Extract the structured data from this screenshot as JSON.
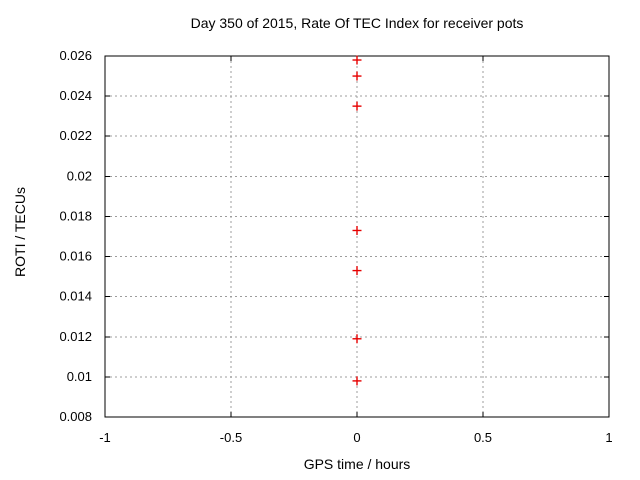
{
  "chart_data": {
    "type": "scatter",
    "title": "Day 350 of 2015, Rate Of TEC Index for receiver pots",
    "xlabel": "GPS time / hours",
    "ylabel": "ROTI / TECUs",
    "xlim": [
      -1,
      1
    ],
    "ylim": [
      0.008,
      0.026
    ],
    "xticks": [
      {
        "value": -1,
        "label": "-1"
      },
      {
        "value": -0.5,
        "label": "-0.5"
      },
      {
        "value": 0,
        "label": "0"
      },
      {
        "value": 0.5,
        "label": "0.5"
      },
      {
        "value": 1,
        "label": "1"
      }
    ],
    "yticks": [
      {
        "value": 0.008,
        "label": "0.008"
      },
      {
        "value": 0.01,
        "label": "0.01"
      },
      {
        "value": 0.012,
        "label": "0.012"
      },
      {
        "value": 0.014,
        "label": "0.014"
      },
      {
        "value": 0.016,
        "label": "0.016"
      },
      {
        "value": 0.018,
        "label": "0.018"
      },
      {
        "value": 0.02,
        "label": "0.02"
      },
      {
        "value": 0.022,
        "label": "0.022"
      },
      {
        "value": 0.024,
        "label": "0.024"
      },
      {
        "value": 0.026,
        "label": "0.026"
      }
    ],
    "grid": true,
    "legend": "none",
    "series": [
      {
        "marker": "plus",
        "color": "#e60000",
        "points": [
          {
            "x": 0,
            "y": 0.0258
          },
          {
            "x": 0,
            "y": 0.025
          },
          {
            "x": 0,
            "y": 0.0235
          },
          {
            "x": 0,
            "y": 0.0173
          },
          {
            "x": 0,
            "y": 0.0153
          },
          {
            "x": 0,
            "y": 0.0119
          },
          {
            "x": 0,
            "y": 0.0098
          }
        ]
      }
    ],
    "colors": {
      "background": "#ffffff",
      "border": "#000000",
      "grid": "#9c9c9c",
      "text": "#000000"
    }
  }
}
